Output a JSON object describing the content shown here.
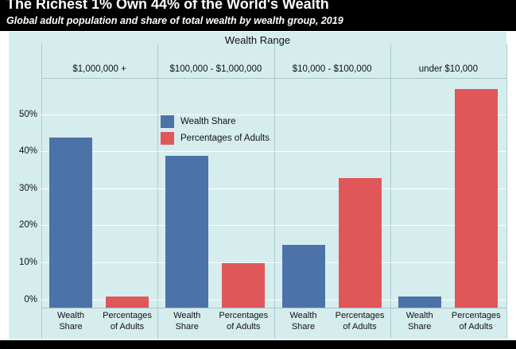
{
  "banner": {
    "title": "The Richest 1% Own 44% of the World's Wealth",
    "subtitle": "Global adult population and share of total wealth by wealth group, 2019"
  },
  "chart_data": {
    "type": "bar",
    "title": "Wealth Range",
    "categories": [
      "$1,000,000 +",
      "$100,000 - $1,000,000",
      "$10,000 - $100,000",
      "under $10,000"
    ],
    "series": [
      {
        "name": "Wealth Share",
        "color": "#4c73a7",
        "values": [
          44,
          39,
          15,
          1
        ]
      },
      {
        "name": "Percentages of Adults",
        "color": "#e05759",
        "values": [
          1,
          10,
          33,
          57
        ]
      }
    ],
    "bar_tick_labels": [
      [
        "Wealth",
        "Share"
      ],
      [
        "Percentages",
        "of Adults"
      ]
    ],
    "yticks": [
      0,
      10,
      20,
      30,
      40,
      50
    ],
    "ytick_labels": [
      "0%",
      "10%",
      "20%",
      "30%",
      "40%",
      "50%"
    ],
    "ylim": [
      -2,
      60
    ],
    "grid": true,
    "legend_position": "upper-left-of-second-panel",
    "plot_background_color": "#d6edee"
  }
}
